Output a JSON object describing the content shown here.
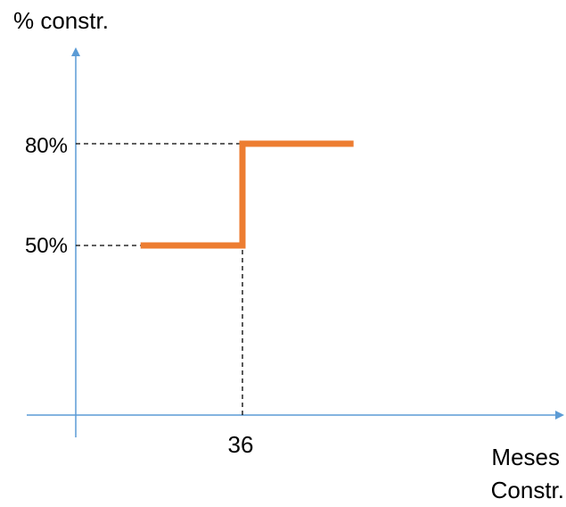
{
  "chart_data": {
    "type": "line",
    "ylabel": "% constr.",
    "xlabel": [
      "Meses",
      "Constr."
    ],
    "y_ticks": [
      "80%",
      "50%"
    ],
    "x_ticks": [
      "36"
    ],
    "series": [
      {
        "line_style": "step",
        "color": "#ED7D31",
        "x": [
          14,
          36,
          36,
          60
        ],
        "y": [
          50,
          50,
          80,
          80
        ]
      }
    ],
    "reference_lines": [
      {
        "from": [
          0,
          80
        ],
        "to": [
          48,
          80
        ],
        "style": "dashed"
      },
      {
        "from": [
          0,
          50
        ],
        "to": [
          14,
          50
        ],
        "style": "dashed"
      },
      {
        "from": [
          36,
          0
        ],
        "to": [
          36,
          50
        ],
        "style": "dashed"
      }
    ],
    "axis_color": "#5B9BD5",
    "grid": false
  }
}
